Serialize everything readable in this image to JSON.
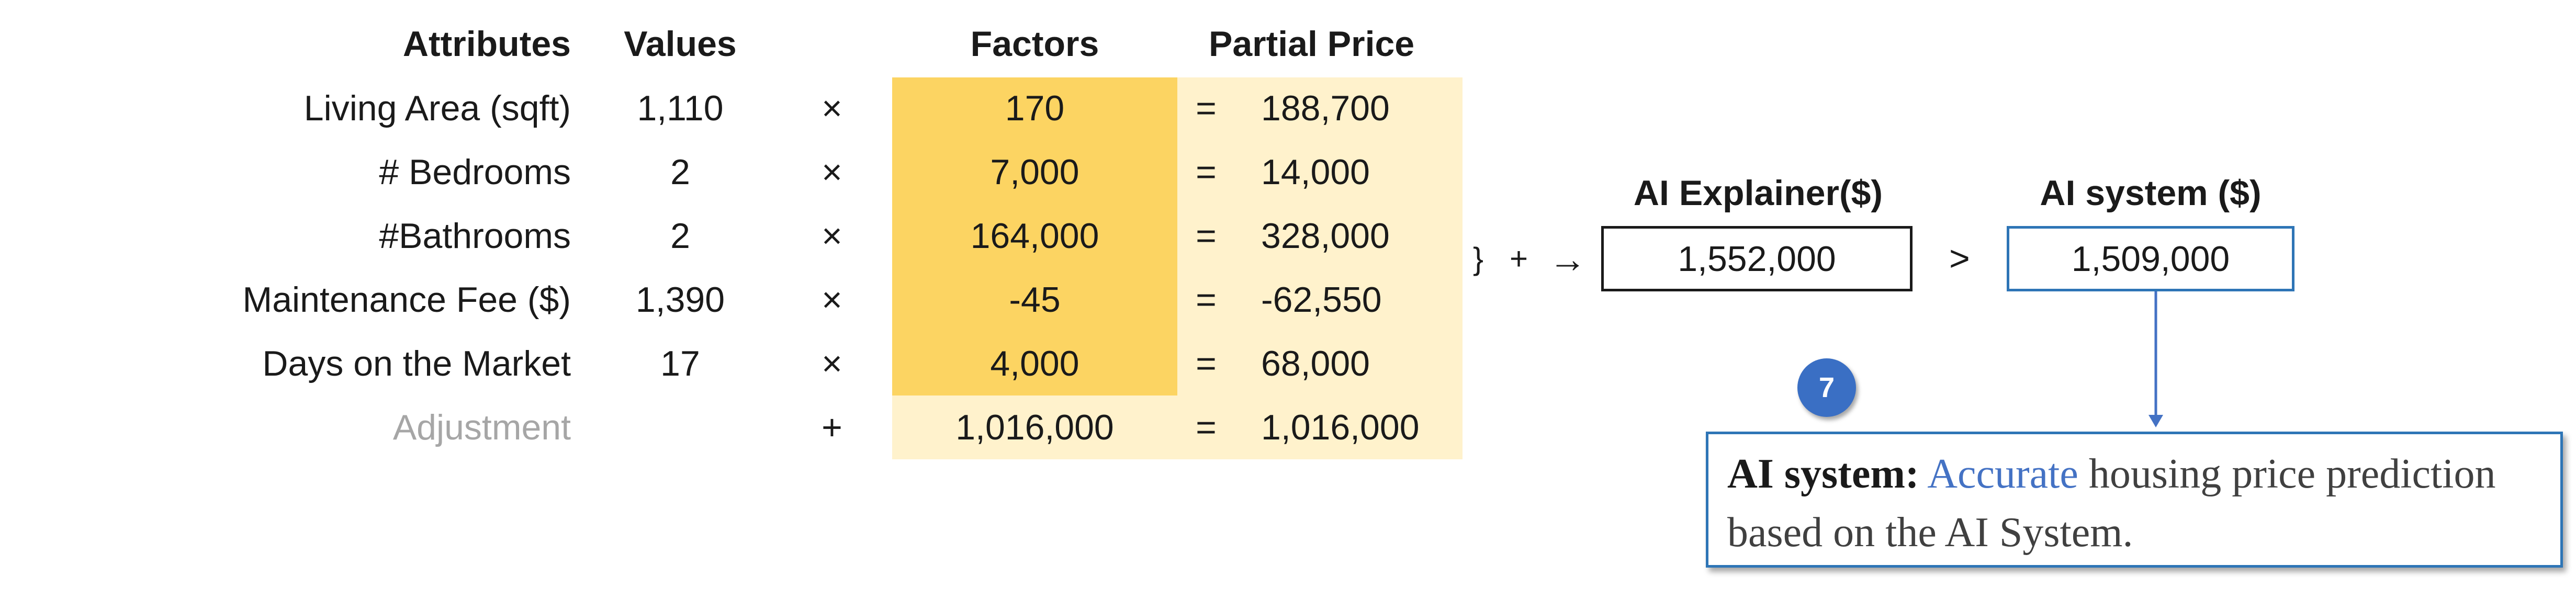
{
  "table": {
    "headers": {
      "attributes": "Attributes",
      "values": "Values",
      "factors": "Factors",
      "partial_price": "Partial Price"
    },
    "rows": [
      {
        "attribute": "Living Area (sqft)",
        "value": "1,110",
        "op": "×",
        "factor": "170",
        "eq": "=",
        "partial": "188,700"
      },
      {
        "attribute": "# Bedrooms",
        "value": "2",
        "op": "×",
        "factor": "7,000",
        "eq": "=",
        "partial": "14,000"
      },
      {
        "attribute": "#Bathrooms",
        "value": "2",
        "op": "×",
        "factor": "164,000",
        "eq": "=",
        "partial": "328,000"
      },
      {
        "attribute": "Maintenance Fee ($)",
        "value": "1,390",
        "op": "×",
        "factor": "-45",
        "eq": "=",
        "partial": "-62,550"
      },
      {
        "attribute": "Days on the Market",
        "value": "17",
        "op": "×",
        "factor": "4,000",
        "eq": "=",
        "partial": "68,000"
      }
    ],
    "adjustment": {
      "attribute": "Adjustment",
      "op": "+",
      "factor": "1,016,000",
      "eq": "=",
      "partial": "1,016,000"
    }
  },
  "sum_symbols": {
    "brace": "}",
    "plus": "+",
    "arrow": "→"
  },
  "explainer": {
    "title": "AI Explainer($)",
    "value": "1,552,000"
  },
  "comparison": ">",
  "ai_system": {
    "title": "AI system ($)",
    "value": "1,509,000"
  },
  "badge": "7",
  "callout": {
    "bold": "AI system:",
    "accent": "Accurate",
    "rest": " housing price prediction based on the AI System."
  },
  "colors": {
    "factor_fill": "#fcd462",
    "partial_fill": "#fff2cc",
    "blue": "#2e75b6",
    "badge": "#3a6fc4"
  }
}
